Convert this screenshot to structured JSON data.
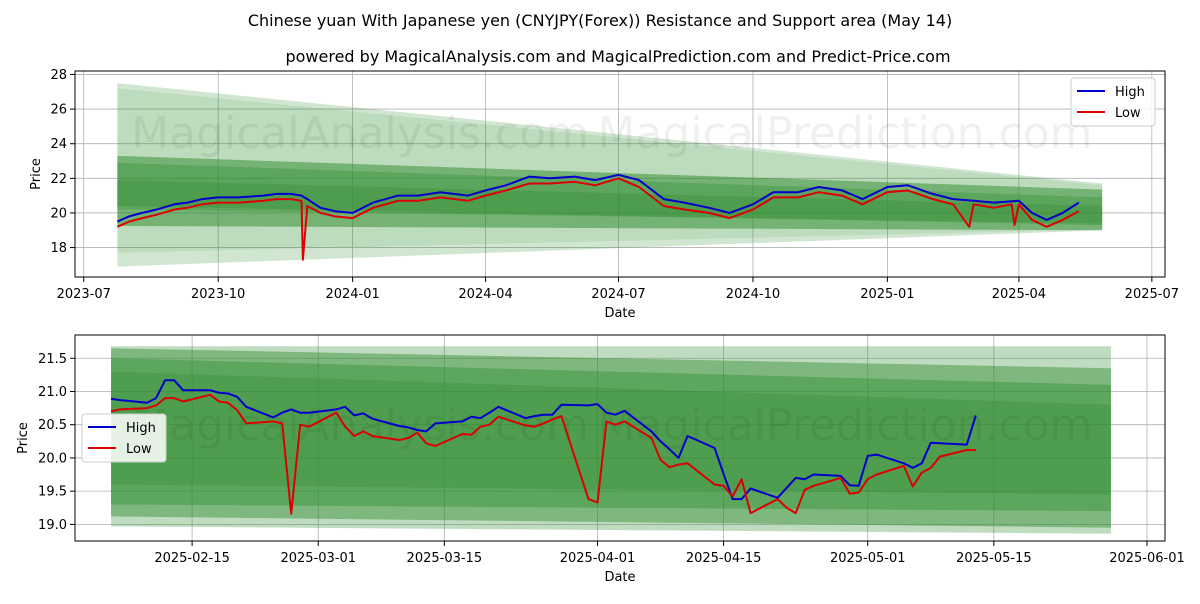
{
  "header": {
    "title": "Chinese yuan With Japanese yen (CNYJPY(Forex)) Resistance and Support area (May 14)",
    "subtitle": "powered by MagicalAnalysis.com and MagicalPrediction.com and Predict-Price.com"
  },
  "watermarks": [
    "MagicalAnalysis.com",
    "MagicalPrediction.com"
  ],
  "colors": {
    "high": "#0000cc",
    "low": "#dd0000",
    "band": "#2e8b2e"
  },
  "chart_data": [
    {
      "type": "line",
      "xlabel": "Date",
      "ylabel": "Price",
      "x_axis": "date",
      "xlim": [
        "2023-06-25",
        "2025-07-10"
      ],
      "ylim": [
        16.3,
        28.2
      ],
      "xticks": [
        "2023-07",
        "2023-10",
        "2024-01",
        "2024-04",
        "2024-07",
        "2024-10",
        "2025-01",
        "2025-04",
        "2025-07"
      ],
      "yticks": [
        18,
        20,
        22,
        24,
        26,
        28
      ],
      "grid": true,
      "legend": "top-right",
      "bands": [
        {
          "x": [
            "2023-07-24",
            "2025-05-28"
          ],
          "upper": [
            27.5,
            21.7
          ],
          "lower": [
            16.9,
            19.0
          ],
          "opacity": 0.22
        },
        {
          "x": [
            "2023-07-24",
            "2025-05-28"
          ],
          "upper": [
            27.2,
            21.6
          ],
          "lower": [
            17.7,
            19.05
          ],
          "opacity": 0.12
        },
        {
          "x": [
            "2023-07-24",
            "2025-05-28"
          ],
          "upper": [
            23.3,
            21.35
          ],
          "lower": [
            19.25,
            19.0
          ],
          "opacity": 0.5
        },
        {
          "x": [
            "2023-07-24",
            "2025-05-28"
          ],
          "upper": [
            22.9,
            20.9
          ],
          "lower": [
            20.4,
            19.3
          ],
          "opacity": 0.35
        },
        {
          "x": [
            "2023-07-24",
            "2025-05-28"
          ],
          "upper": [
            21.9,
            20.4
          ],
          "lower": [
            20.2,
            19.4
          ],
          "opacity": 0.3
        }
      ],
      "series": [
        {
          "name": "High",
          "color": "#0000cc",
          "x": [
            "2023-07-24",
            "2023-08-01",
            "2023-08-10",
            "2023-08-20",
            "2023-09-01",
            "2023-09-10",
            "2023-09-20",
            "2023-10-01",
            "2023-10-15",
            "2023-11-01",
            "2023-11-10",
            "2023-11-20",
            "2023-11-27",
            "2023-12-01",
            "2023-12-10",
            "2023-12-20",
            "2024-01-01",
            "2024-01-15",
            "2024-02-01",
            "2024-02-15",
            "2024-03-01",
            "2024-03-20",
            "2024-04-01",
            "2024-04-15",
            "2024-05-01",
            "2024-05-15",
            "2024-06-01",
            "2024-06-15",
            "2024-07-01",
            "2024-07-15",
            "2024-08-01",
            "2024-08-15",
            "2024-09-01",
            "2024-09-15",
            "2024-10-01",
            "2024-10-15",
            "2024-11-01",
            "2024-11-15",
            "2024-12-01",
            "2024-12-15",
            "2025-01-01",
            "2025-01-15",
            "2025-02-01",
            "2025-02-15",
            "2025-03-01",
            "2025-03-15",
            "2025-04-01",
            "2025-04-10",
            "2025-04-20",
            "2025-05-01",
            "2025-05-12"
          ],
          "values": [
            19.5,
            19.8,
            20.0,
            20.2,
            20.5,
            20.6,
            20.8,
            20.9,
            20.9,
            21.0,
            21.1,
            21.1,
            21.0,
            20.8,
            20.3,
            20.1,
            20.0,
            20.6,
            21.0,
            21.0,
            21.2,
            21.0,
            21.3,
            21.6,
            22.1,
            22.0,
            22.1,
            21.9,
            22.2,
            21.9,
            20.8,
            20.6,
            20.3,
            20.0,
            20.5,
            21.2,
            21.2,
            21.5,
            21.3,
            20.8,
            21.5,
            21.6,
            21.1,
            20.8,
            20.7,
            20.6,
            20.7,
            20.0,
            19.6,
            20.0,
            20.6
          ]
        },
        {
          "name": "Low",
          "color": "#dd0000",
          "x": [
            "2023-07-24",
            "2023-08-01",
            "2023-08-10",
            "2023-08-20",
            "2023-09-01",
            "2023-09-10",
            "2023-09-20",
            "2023-10-01",
            "2023-10-15",
            "2023-11-01",
            "2023-11-10",
            "2023-11-20",
            "2023-11-27",
            "2023-11-28",
            "2023-12-01",
            "2023-12-10",
            "2023-12-20",
            "2024-01-01",
            "2024-01-15",
            "2024-02-01",
            "2024-02-15",
            "2024-03-01",
            "2024-03-20",
            "2024-04-01",
            "2024-04-15",
            "2024-05-01",
            "2024-05-15",
            "2024-06-01",
            "2024-06-15",
            "2024-07-01",
            "2024-07-15",
            "2024-08-01",
            "2024-08-15",
            "2024-09-01",
            "2024-09-15",
            "2024-10-01",
            "2024-10-15",
            "2024-11-01",
            "2024-11-15",
            "2024-12-01",
            "2024-12-15",
            "2025-01-01",
            "2025-01-15",
            "2025-02-01",
            "2025-02-15",
            "2025-02-26",
            "2025-03-01",
            "2025-03-15",
            "2025-03-27",
            "2025-03-29",
            "2025-04-01",
            "2025-04-10",
            "2025-04-20",
            "2025-05-01",
            "2025-05-12"
          ],
          "values": [
            19.2,
            19.5,
            19.7,
            19.9,
            20.2,
            20.3,
            20.5,
            20.6,
            20.6,
            20.7,
            20.8,
            20.8,
            20.7,
            17.3,
            20.4,
            20.0,
            19.8,
            19.7,
            20.3,
            20.7,
            20.7,
            20.9,
            20.7,
            21.0,
            21.3,
            21.7,
            21.7,
            21.8,
            21.6,
            22.0,
            21.5,
            20.4,
            20.2,
            20.0,
            19.7,
            20.2,
            20.9,
            20.9,
            21.2,
            21.0,
            20.5,
            21.2,
            21.3,
            20.8,
            20.5,
            19.2,
            20.5,
            20.3,
            20.5,
            19.3,
            20.5,
            19.6,
            19.2,
            19.6,
            20.1
          ]
        }
      ]
    },
    {
      "type": "line",
      "xlabel": "Date",
      "ylabel": "Price",
      "x_axis": "date",
      "xlim": [
        "2025-02-02",
        "2025-06-03"
      ],
      "ylim": [
        18.75,
        21.85
      ],
      "xticks": [
        "2025-02-15",
        "2025-03-01",
        "2025-03-15",
        "2025-04-01",
        "2025-04-15",
        "2025-05-01",
        "2025-05-15",
        "2025-06-01"
      ],
      "yticks": [
        19.0,
        19.5,
        20.0,
        20.5,
        21.0,
        21.5
      ],
      "grid": true,
      "legend": "center-left",
      "bands": [
        {
          "x": [
            "2025-02-06",
            "2025-05-28"
          ],
          "upper": [
            21.68,
            21.68
          ],
          "lower": [
            18.97,
            18.86
          ],
          "opacity": 0.3
        },
        {
          "x": [
            "2025-02-06",
            "2025-05-28"
          ],
          "upper": [
            21.65,
            21.35
          ],
          "lower": [
            19.12,
            18.95
          ],
          "opacity": 0.45
        },
        {
          "x": [
            "2025-02-06",
            "2025-05-28"
          ],
          "upper": [
            21.5,
            21.1
          ],
          "lower": [
            19.3,
            19.2
          ],
          "opacity": 0.4
        },
        {
          "x": [
            "2025-02-06",
            "2025-05-28"
          ],
          "upper": [
            21.3,
            20.8
          ],
          "lower": [
            19.6,
            19.45
          ],
          "opacity": 0.3
        }
      ],
      "series": [
        {
          "name": "High",
          "color": "#0000cc",
          "x": [
            "2025-02-06",
            "2025-02-07",
            "2025-02-10",
            "2025-02-11",
            "2025-02-12",
            "2025-02-13",
            "2025-02-14",
            "2025-02-17",
            "2025-02-18",
            "2025-02-19",
            "2025-02-20",
            "2025-02-21",
            "2025-02-24",
            "2025-02-25",
            "2025-02-26",
            "2025-02-27",
            "2025-02-28",
            "2025-03-03",
            "2025-03-04",
            "2025-03-05",
            "2025-03-06",
            "2025-03-07",
            "2025-03-10",
            "2025-03-11",
            "2025-03-12",
            "2025-03-13",
            "2025-03-14",
            "2025-03-17",
            "2025-03-18",
            "2025-03-19",
            "2025-03-20",
            "2025-03-21",
            "2025-03-24",
            "2025-03-25",
            "2025-03-26",
            "2025-03-27",
            "2025-03-28",
            "2025-03-31",
            "2025-04-01",
            "2025-04-02",
            "2025-04-03",
            "2025-04-04",
            "2025-04-07",
            "2025-04-08",
            "2025-04-09",
            "2025-04-10",
            "2025-04-11",
            "2025-04-14",
            "2025-04-15",
            "2025-04-16",
            "2025-04-17",
            "2025-04-18",
            "2025-04-21",
            "2025-04-22",
            "2025-04-23",
            "2025-04-24",
            "2025-04-25",
            "2025-04-28",
            "2025-04-29",
            "2025-04-30",
            "2025-05-01",
            "2025-05-02",
            "2025-05-05",
            "2025-05-06",
            "2025-05-07",
            "2025-05-08",
            "2025-05-09",
            "2025-05-12",
            "2025-05-13"
          ],
          "values": [
            20.89,
            20.87,
            20.83,
            20.9,
            21.17,
            21.17,
            21.02,
            21.02,
            20.98,
            20.97,
            20.92,
            20.77,
            20.61,
            20.68,
            20.73,
            20.68,
            20.68,
            20.73,
            20.77,
            20.64,
            20.67,
            20.59,
            20.48,
            20.46,
            20.42,
            20.4,
            20.52,
            20.55,
            20.62,
            20.6,
            20.68,
            20.77,
            20.6,
            20.63,
            20.65,
            20.65,
            20.8,
            20.79,
            20.81,
            20.68,
            20.65,
            20.71,
            20.4,
            20.25,
            20.13,
            20.0,
            20.33,
            20.15,
            19.76,
            19.38,
            19.38,
            19.54,
            19.4,
            19.55,
            19.7,
            19.68,
            19.75,
            19.73,
            19.59,
            19.58,
            20.03,
            20.05,
            19.92,
            19.85,
            19.92,
            20.23,
            20.22,
            20.2,
            20.64
          ]
        },
        {
          "name": "Low",
          "color": "#dd0000",
          "x": [
            "2025-02-06",
            "2025-02-07",
            "2025-02-10",
            "2025-02-11",
            "2025-02-12",
            "2025-02-13",
            "2025-02-14",
            "2025-02-17",
            "2025-02-18",
            "2025-02-19",
            "2025-02-20",
            "2025-02-21",
            "2025-02-24",
            "2025-02-25",
            "2025-02-26",
            "2025-02-27",
            "2025-02-28",
            "2025-03-03",
            "2025-03-04",
            "2025-03-05",
            "2025-03-06",
            "2025-03-07",
            "2025-03-10",
            "2025-03-11",
            "2025-03-12",
            "2025-03-13",
            "2025-03-14",
            "2025-03-17",
            "2025-03-18",
            "2025-03-19",
            "2025-03-20",
            "2025-03-21",
            "2025-03-24",
            "2025-03-25",
            "2025-03-26",
            "2025-03-27",
            "2025-03-28",
            "2025-03-31",
            "2025-04-01",
            "2025-04-02",
            "2025-04-03",
            "2025-04-04",
            "2025-04-07",
            "2025-04-08",
            "2025-04-09",
            "2025-04-10",
            "2025-04-11",
            "2025-04-14",
            "2025-04-15",
            "2025-04-16",
            "2025-04-17",
            "2025-04-18",
            "2025-04-21",
            "2025-04-22",
            "2025-04-23",
            "2025-04-24",
            "2025-04-25",
            "2025-04-28",
            "2025-04-29",
            "2025-04-30",
            "2025-05-01",
            "2025-05-02",
            "2025-05-05",
            "2025-05-06",
            "2025-05-07",
            "2025-05-08",
            "2025-05-09",
            "2025-05-12",
            "2025-05-13"
          ],
          "values": [
            20.7,
            20.73,
            20.75,
            20.79,
            20.9,
            20.9,
            20.85,
            20.95,
            20.85,
            20.83,
            20.72,
            20.52,
            20.55,
            20.52,
            19.16,
            20.5,
            20.47,
            20.68,
            20.47,
            20.33,
            20.4,
            20.33,
            20.27,
            20.3,
            20.38,
            20.22,
            20.18,
            20.36,
            20.35,
            20.47,
            20.5,
            20.62,
            20.49,
            20.47,
            20.52,
            20.58,
            20.63,
            19.38,
            19.33,
            20.55,
            20.5,
            20.55,
            20.3,
            19.97,
            19.86,
            19.9,
            19.92,
            19.6,
            19.58,
            19.42,
            19.68,
            19.17,
            19.38,
            19.25,
            19.17,
            19.52,
            19.58,
            19.7,
            19.46,
            19.48,
            19.68,
            19.75,
            19.88,
            19.57,
            19.78,
            19.85,
            20.02,
            20.12,
            20.12
          ]
        }
      ]
    }
  ]
}
